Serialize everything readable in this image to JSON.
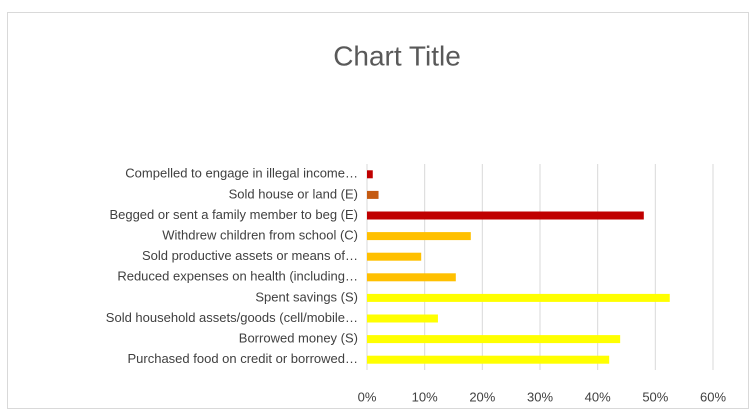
{
  "chart_data": {
    "type": "hbar",
    "title": "Chart Title",
    "categories": [
      "Compelled to engage in illegal income…",
      "Sold house or land (E)",
      "Begged or sent a family member to beg (E)",
      "Withdrew children from school (C)",
      "Sold productive assets or means of…",
      "Reduced expenses on health (including…",
      "Spent savings (S)",
      "Sold household assets/goods (cell/mobile…",
      "Borrowed money (S)",
      "Purchased food on credit or borrowed…"
    ],
    "values": [
      1,
      2,
      48,
      18,
      9.4,
      15.4,
      52.5,
      12.3,
      43.9,
      42
    ],
    "colors": [
      "#c00000",
      "#c55a11",
      "#c00000",
      "#ffc000",
      "#ffc000",
      "#ffc000",
      "#ffff00",
      "#ffff00",
      "#ffff00",
      "#ffff00"
    ],
    "xlim": [
      0,
      60
    ],
    "xticks": [
      {
        "value": 0,
        "label": "0%"
      },
      {
        "value": 10,
        "label": "10%"
      },
      {
        "value": 20,
        "label": "20%"
      },
      {
        "value": 30,
        "label": "30%"
      },
      {
        "value": 40,
        "label": "40%"
      },
      {
        "value": 50,
        "label": "50%"
      },
      {
        "value": 60,
        "label": "60%"
      }
    ],
    "grid": true
  }
}
